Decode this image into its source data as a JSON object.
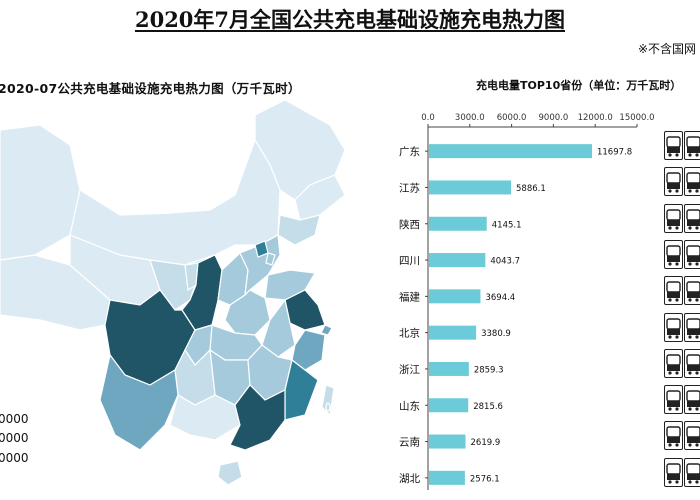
{
  "title": "2020年7月全国公共充电基础设施充电热力图",
  "note": "※不含国网",
  "map": {
    "title": "2020-07公共充电基础设施充电热力图（万千瓦时）",
    "legend": [
      "0000",
      "0000",
      "0000"
    ],
    "colors": {
      "darkest": "#1f5566",
      "dark": "#2e7f97",
      "medium": "#6fa7c0",
      "light": "#a5cadc",
      "lighter": "#c4dde9",
      "lightest": "#dcebf3",
      "border": "#ffffff"
    }
  },
  "chart_data": {
    "type": "bar",
    "orientation": "horizontal",
    "title": "充电电量TOP10省份（单位：万千瓦时）",
    "categories": [
      "广东",
      "江苏",
      "陕西",
      "四川",
      "福建",
      "北京",
      "浙江",
      "山东",
      "云南",
      "湖北"
    ],
    "values": [
      11697.8,
      5886.1,
      4145.1,
      4043.7,
      3694.4,
      3380.9,
      2859.3,
      2815.6,
      2619.9,
      2576.1
    ],
    "value_labels": [
      "11697.8",
      "5886.1",
      "4145.1",
      "4043.7",
      "3694.4",
      "3380.9",
      "2859.3",
      "2815.6",
      "2619.9",
      "2576.1"
    ],
    "ticks": [
      0,
      3000,
      6000,
      9000,
      12000,
      15000
    ],
    "tick_labels": [
      "0.0",
      "3000.0",
      "6000.0",
      "9000.0",
      "12000.0",
      "15000.0"
    ],
    "xlim": [
      0,
      15000
    ],
    "bar_color": "#6ccbd8",
    "axis_position": "top"
  },
  "icons": [
    "charger-icon",
    "charger-icon",
    "charger-icon",
    "charger-icon",
    "charger-icon",
    "charger-icon",
    "charger-icon",
    "charger-icon",
    "charger-icon",
    "charger-icon"
  ]
}
